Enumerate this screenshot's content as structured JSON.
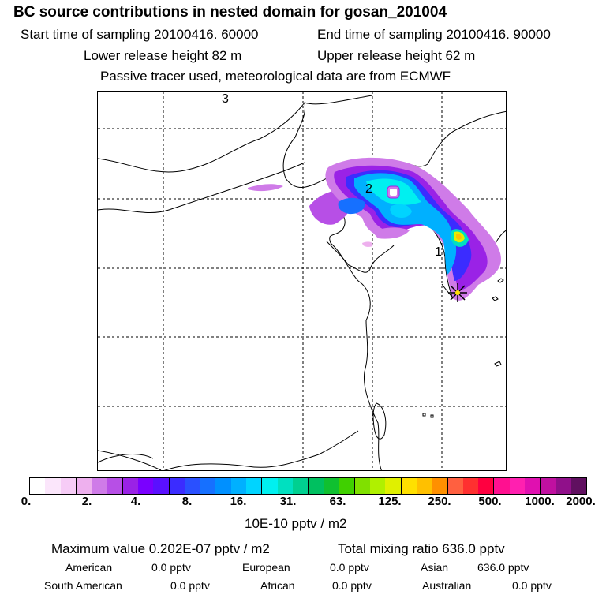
{
  "header": {
    "title": "BC  source contributions in nested domain for gosan_201004",
    "start_label": "Start time of sampling 20100416. 60000",
    "end_label": "End time of sampling 20100416. 90000",
    "lower_label": "Lower release height   82 m",
    "upper_label": "Upper release height   62 m",
    "info": "Passive tracer used, meteorological data are from ECMWF"
  },
  "map": {
    "markers": [
      "3",
      "2",
      "1"
    ]
  },
  "colorbar": {
    "ticks": [
      "0.",
      "2.",
      "4.",
      "8.",
      "16.",
      "31.",
      "63.",
      "125.",
      "250.",
      "500.",
      "1000.",
      "2000."
    ],
    "unit": "10E-10 pptv / m2",
    "colors": [
      "#ffffff",
      "#fbe6fb",
      "#f6ccf6",
      "#eeb0ee",
      "#cf7be8",
      "#b74fe6",
      "#9a22e6",
      "#7a00ff",
      "#5a10ff",
      "#3b2cff",
      "#2a50ff",
      "#1670ff",
      "#0090ff",
      "#00b0ff",
      "#00d4ff",
      "#00f0f0",
      "#00e0c0",
      "#00d090",
      "#00c060",
      "#10c030",
      "#40d000",
      "#80e000",
      "#b0f000",
      "#e0f000",
      "#ffe000",
      "#ffc000",
      "#ff9000",
      "#ff6040",
      "#ff3030",
      "#ff0040",
      "#ff1090",
      "#ff20b0",
      "#e010b0",
      "#c010a0",
      "#90108a",
      "#601060"
    ]
  },
  "stats": {
    "maximum": "Maximum value  0.202E-07 pptv / m2",
    "total": "Total mixing ratio      636.0 pptv",
    "american_label": "American",
    "american_value": "0.0 pptv",
    "european_label": "European",
    "european_value": "0.0 pptv",
    "asian_label": "Asian",
    "asian_value": "636.0 pptv",
    "south_american_label": "South American",
    "south_american_value": "0.0 pptv",
    "african_label": "African",
    "african_value": "0.0 pptv",
    "australian_label": "Australian",
    "australian_value": "0.0 pptv"
  }
}
